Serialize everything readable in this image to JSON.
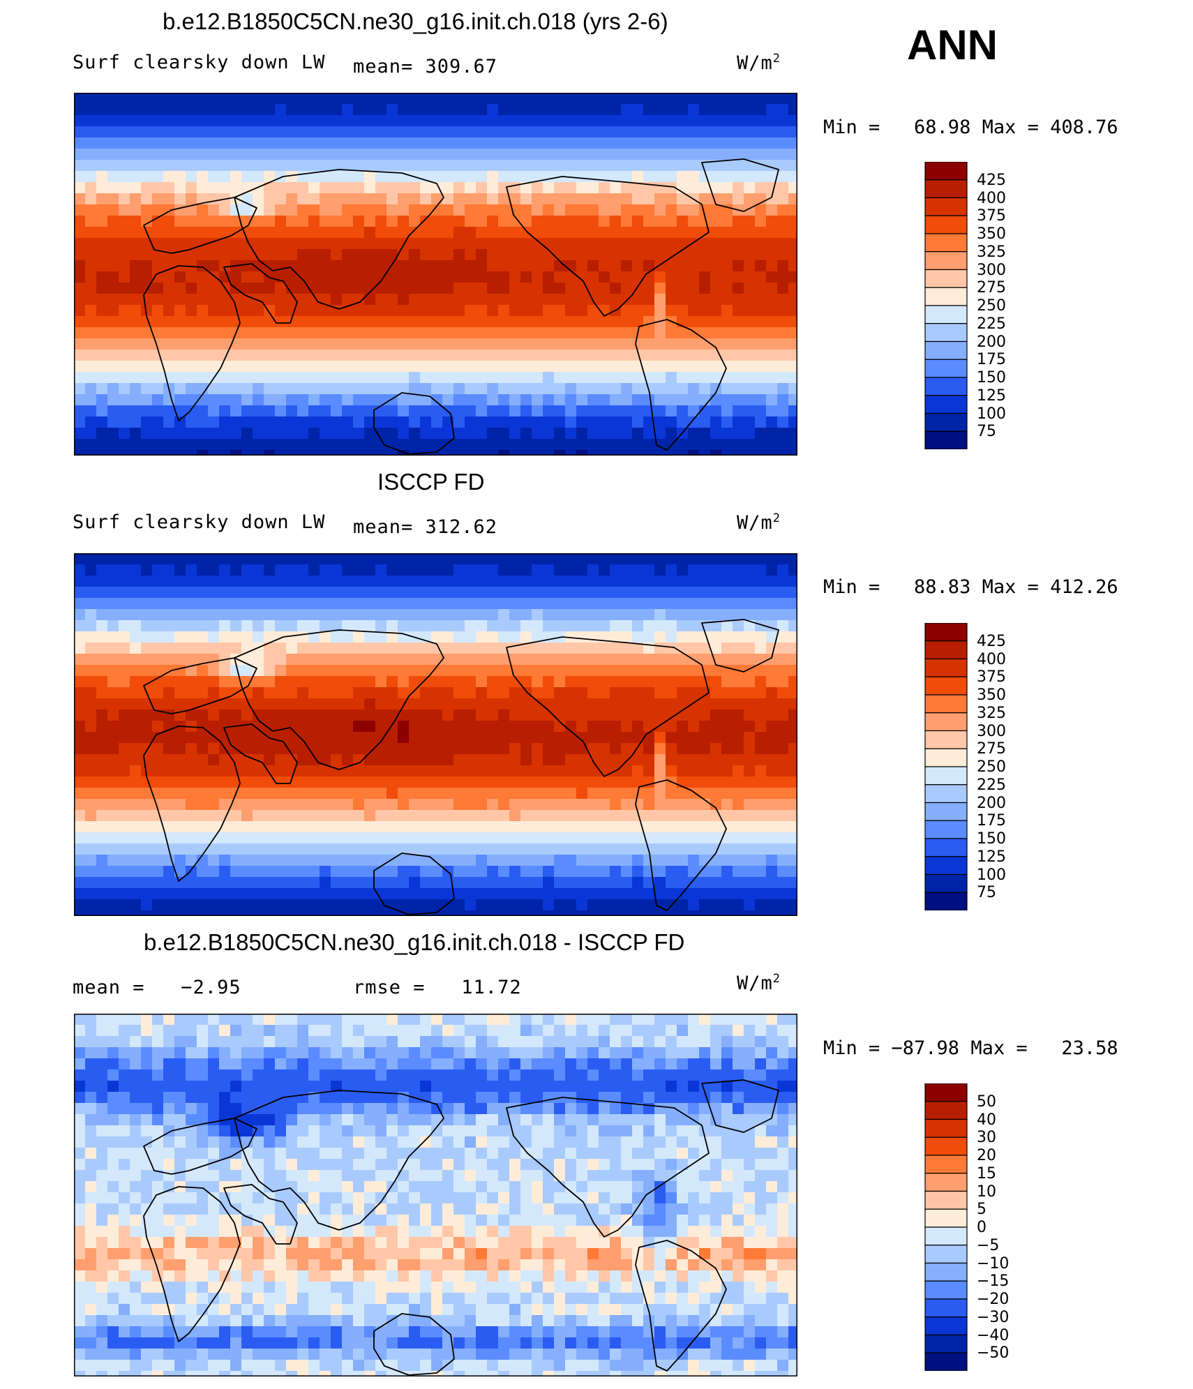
{
  "chart_data": [
    {
      "type": "heatmap",
      "title": "b.e12.B1850C5CN.ne30_g16.init.ch.018 (yrs 2-6)",
      "variable": "Surf clearsky down LW",
      "stat1": "mean= 309.67",
      "units": "W/m",
      "units_sup": "2",
      "min_max": "Min =   68.98 Max = 408.76",
      "levels": [
        "425",
        "400",
        "375",
        "350",
        "325",
        "300",
        "275",
        "250",
        "225",
        "200",
        "175",
        "150",
        "125",
        "100",
        "75"
      ],
      "colors": [
        "#8c0000",
        "#b81f00",
        "#d63300",
        "#f04c0a",
        "#ff7a36",
        "#ff9e6e",
        "#ffc7a8",
        "#ffecd8",
        "#d4e8fc",
        "#a9cafc",
        "#85aefc",
        "#5a8cff",
        "#2a5cf2",
        "#0a36d6",
        "#0024a8",
        "#001080"
      ],
      "map": {
        "mode": "mean",
        "bias": 0
      }
    },
    {
      "type": "heatmap",
      "title": "ISCCP FD",
      "variable": "Surf clearsky down LW",
      "stat1": "mean= 312.62",
      "units": "W/m",
      "units_sup": "2",
      "min_max": "Min =   88.83 Max = 412.26",
      "levels": [
        "425",
        "400",
        "375",
        "350",
        "325",
        "300",
        "275",
        "250",
        "225",
        "200",
        "175",
        "150",
        "125",
        "100",
        "75"
      ],
      "colors": [
        "#8c0000",
        "#b81f00",
        "#d63300",
        "#f04c0a",
        "#ff7a36",
        "#ff9e6e",
        "#ffc7a8",
        "#ffecd8",
        "#d4e8fc",
        "#a9cafc",
        "#85aefc",
        "#5a8cff",
        "#2a5cf2",
        "#0a36d6",
        "#0024a8",
        "#001080"
      ],
      "map": {
        "mode": "mean",
        "bias": 6
      }
    },
    {
      "type": "heatmap",
      "title": "b.e12.B1850C5CN.ne30_g16.init.ch.018 - ISCCP FD",
      "variable": "",
      "stat1": "mean =   −2.95",
      "stat2": "rmse =   11.72",
      "units": "W/m",
      "units_sup": "2",
      "min_max": "Min = −87.98 Max =   23.58",
      "levels": [
        "50",
        "40",
        "30",
        "20",
        "15",
        "10",
        "5",
        "0",
        "−5",
        "−10",
        "−15",
        "−20",
        "−30",
        "−40",
        "−50"
      ],
      "colors": [
        "#8c0000",
        "#b81f00",
        "#d63300",
        "#f04c0a",
        "#ff7a36",
        "#ff9e6e",
        "#ffc7a8",
        "#ffecd8",
        "#d4e8fc",
        "#a9cafc",
        "#85aefc",
        "#5a8cff",
        "#2a5cf2",
        "#0a36d6",
        "#0024a8",
        "#001080"
      ],
      "map": {
        "mode": "diff",
        "bias": 0
      }
    }
  ],
  "season": "ANN"
}
